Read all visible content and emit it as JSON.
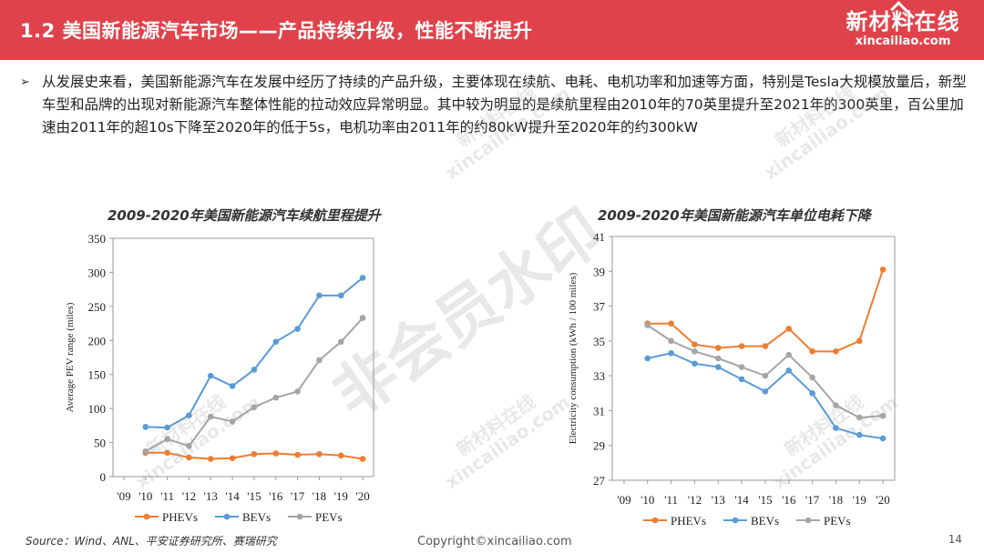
{
  "header": {
    "title": "1.2 美国新能源汽车市场——产品持续升级，性能不断提升",
    "logo_cn": "新材料在线",
    "logo_en": "xincailiao.com",
    "color": "#e0424b"
  },
  "bullet_text": "从发展史来看，美国新能源汽车在发展中经历了持续的产品升级，主要体现在续航、电耗、电机功率和加速等方面，特别是Tesla大规模放量后，新型车型和品牌的出现对新能源汽车整体性能的拉动效应异常明显。其中较为明显的是续航里程由2010年的70英里提升至2021年的300英里，百公里加速由2011年的超10s下降至2020年的低于5s，电机功率由2011年的约80kW提升至2020年的约300kW",
  "footer": {
    "source": "Source：Wind、ANL、平安证券研究所、赛瑞研究",
    "copyright": "Copyright©xincailiao.com",
    "page": "14"
  },
  "watermarks": {
    "big": "非会员水印",
    "small_cn": "新材料在线",
    "small_en": "xincailiao.com"
  },
  "chart_data": [
    {
      "type": "line",
      "title": "2009-2020年美国新能源汽车续航里程提升",
      "xlabel": "",
      "ylabel": "Average PEV range (miles)",
      "categories": [
        "'09",
        "'10",
        "'11",
        "'12",
        "'13",
        "'14",
        "'15",
        "'16",
        "'17",
        "'18",
        "'19",
        "'20"
      ],
      "ylim": [
        0,
        350
      ],
      "yticks": [
        0,
        50,
        100,
        150,
        200,
        250,
        300,
        350
      ],
      "grid": false,
      "legend": "bottom",
      "series": [
        {
          "name": "PHEVs",
          "color": "#ed7d31",
          "values": [
            null,
            35,
            35,
            28,
            26,
            27,
            33,
            34,
            32,
            33,
            31,
            26
          ]
        },
        {
          "name": "BEVs",
          "color": "#5b9bd5",
          "values": [
            null,
            73,
            72,
            90,
            148,
            133,
            157,
            198,
            217,
            266,
            266,
            292
          ]
        },
        {
          "name": "PEVs",
          "color": "#a5a5a5",
          "values": [
            null,
            37,
            55,
            45,
            88,
            81,
            102,
            116,
            125,
            171,
            198,
            233
          ]
        }
      ]
    },
    {
      "type": "line",
      "title": "2009-2020年美国新能源汽车单位电耗下降",
      "xlabel": "",
      "ylabel": "Electricity consumption (kWh / 100 miles)",
      "categories": [
        "'09",
        "'10",
        "'11",
        "'12",
        "'13",
        "'14",
        "'15",
        "'16",
        "'17",
        "'18",
        "'19",
        "'20"
      ],
      "ylim": [
        27,
        41
      ],
      "yticks": [
        27,
        29,
        31,
        33,
        35,
        37,
        39,
        41
      ],
      "grid": false,
      "legend": "bottom",
      "series": [
        {
          "name": "PHEVs",
          "color": "#ed7d31",
          "values": [
            null,
            36.0,
            36.0,
            34.8,
            34.6,
            34.7,
            34.7,
            35.7,
            34.4,
            34.4,
            35.0,
            39.1
          ]
        },
        {
          "name": "BEVs",
          "color": "#5b9bd5",
          "values": [
            null,
            34.0,
            34.3,
            33.7,
            33.5,
            32.8,
            32.1,
            33.3,
            32.0,
            30.0,
            29.6,
            29.4
          ]
        },
        {
          "name": "PEVs",
          "color": "#a5a5a5",
          "values": [
            null,
            35.9,
            35.0,
            34.4,
            34.0,
            33.5,
            33.0,
            34.2,
            32.9,
            31.3,
            30.6,
            30.7
          ]
        }
      ]
    }
  ]
}
